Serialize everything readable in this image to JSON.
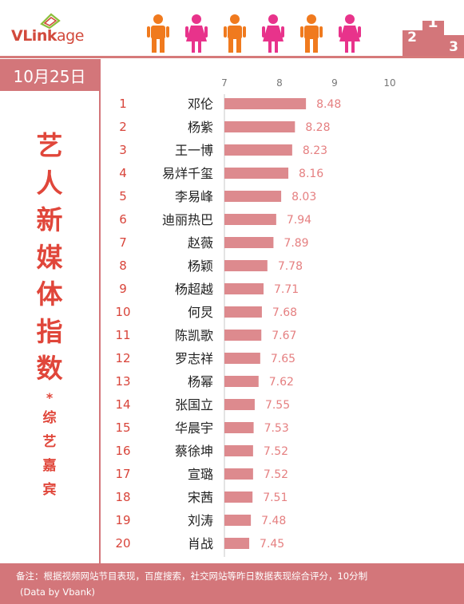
{
  "header": {
    "logo_brand": "VLink",
    "logo_suffix": "age",
    "podium_numbers": [
      "2",
      "1",
      "3"
    ]
  },
  "date_label": "10月25日",
  "title": {
    "main_chars": [
      "艺",
      "人",
      "新",
      "媒",
      "体",
      "指",
      "数"
    ],
    "star": "*",
    "sub_chars": [
      "综",
      "艺",
      "嘉",
      "宾"
    ]
  },
  "footer": {
    "line1": "备注：根据视频网站节目表现，百度搜索，社交网站等昨日数据表现综合评分，10分制",
    "line2": "(Data by Vbank)"
  },
  "colors": {
    "accent": "#d3767a",
    "bar": "#dd8a8e",
    "value_text": "#e57f80",
    "title_red": "#e0463a",
    "person_orange": "#f07a1e",
    "person_pink": "#e8338b"
  },
  "chart_data": {
    "type": "bar",
    "orientation": "horizontal",
    "xlim": [
      7,
      10
    ],
    "x_ticks": [
      "7",
      "8",
      "9",
      "10"
    ],
    "ranks": [
      "1",
      "2",
      "3",
      "4",
      "5",
      "6",
      "7",
      "8",
      "9",
      "10",
      "11",
      "12",
      "13",
      "14",
      "15",
      "16",
      "17",
      "18",
      "19",
      "20"
    ],
    "categories": [
      "邓伦",
      "杨紫",
      "王一博",
      "易烊千玺",
      "李易峰",
      "迪丽热巴",
      "赵薇",
      "杨颖",
      "杨超越",
      "何炅",
      "陈凯歌",
      "罗志祥",
      "杨幂",
      "张国立",
      "华晨宇",
      "蔡徐坤",
      "宣璐",
      "宋茜",
      "刘涛",
      "肖战"
    ],
    "values": [
      8.48,
      8.28,
      8.23,
      8.16,
      8.03,
      7.94,
      7.89,
      7.78,
      7.71,
      7.68,
      7.67,
      7.65,
      7.62,
      7.55,
      7.53,
      7.52,
      7.52,
      7.51,
      7.48,
      7.45
    ],
    "value_labels": [
      "8.48",
      "8.28",
      "8.23",
      "8.16",
      "8.03",
      "7.94",
      "7.89",
      "7.78",
      "7.71",
      "7.68",
      "7.67",
      "7.65",
      "7.62",
      "7.55",
      "7.53",
      "7.52",
      "7.52",
      "7.51",
      "7.48",
      "7.45"
    ]
  }
}
